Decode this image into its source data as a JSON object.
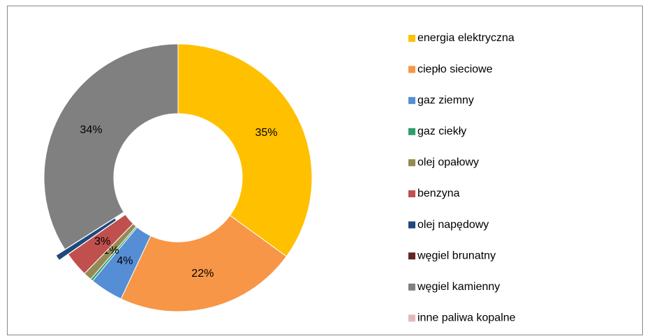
{
  "chart_data": {
    "type": "donut",
    "categories": [
      "energia elektryczna",
      "ciepło sieciowe",
      "gaz ziemny",
      "gaz ciekły",
      "olej opałowy",
      "benzyna",
      "olej napędowy",
      "węgiel brunatny",
      "węgiel kamienny",
      "inne paliwa kopalne"
    ],
    "values": [
      35,
      22,
      4,
      0.3,
      1,
      3,
      0.7,
      0,
      34,
      0
    ],
    "value_labels": [
      "35%",
      "22%",
      "4%",
      null,
      "1%",
      "3%",
      null,
      null,
      "34%",
      null
    ],
    "colors": [
      "#FFC000",
      "#F79646",
      "#558ED5",
      "#2E9E6E",
      "#948A54",
      "#C0504D",
      "#1F497D",
      "#632523",
      "#808080",
      "#E6B9B8"
    ],
    "explode": [
      0,
      0,
      0,
      0,
      0,
      0,
      0.08,
      0,
      0,
      0
    ],
    "legend": "right"
  }
}
